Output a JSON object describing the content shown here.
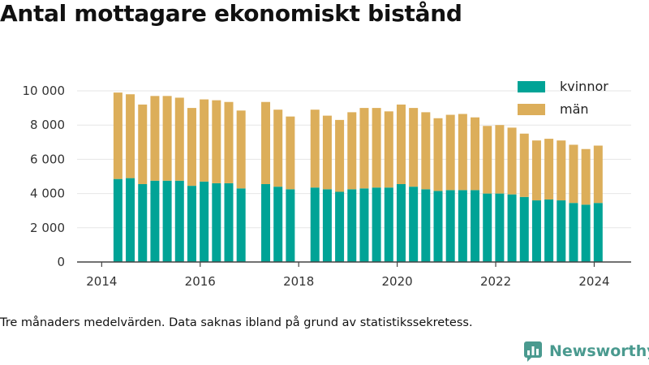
{
  "title": "Antal mottagare ekonomiskt bistånd",
  "footnote": "Tre månaders medelvärden. Data saknas ibland på grund av statistikssekretess.",
  "brand": {
    "name": "Newsworthy",
    "icon": "newsworthy-logo-icon",
    "color": "#4a9a8f"
  },
  "colors": {
    "kvinnor": "#00a396",
    "man": "#dcae5a",
    "grid": "#e6e6e6",
    "axis": "#444444"
  },
  "chart_data": {
    "type": "bar",
    "stacked": true,
    "title": "Antal mottagare ekonomiskt bistånd",
    "xlabel": "",
    "ylabel": "",
    "ylim": [
      0,
      10000
    ],
    "yticks": [
      0,
      2000,
      4000,
      6000,
      8000,
      10000
    ],
    "ytick_labels": [
      "0",
      "2 000",
      "4 000",
      "6 000",
      "8 000",
      "10 000"
    ],
    "xticks": [
      2014,
      2016,
      2018,
      2020,
      2022,
      2024
    ],
    "xtick_labels": [
      "2014",
      "2016",
      "2018",
      "2020",
      "2022",
      "2024"
    ],
    "xlim": [
      2013.5,
      2024.75
    ],
    "grid": "horizontal",
    "legend_position": "top-right",
    "x": [
      2014.33,
      2014.58,
      2014.83,
      2015.08,
      2015.33,
      2015.58,
      2015.83,
      2016.08,
      2016.33,
      2016.58,
      2016.83,
      2017.33,
      2017.58,
      2017.83,
      2018.33,
      2018.58,
      2018.83,
      2019.08,
      2019.33,
      2019.58,
      2019.83,
      2020.08,
      2020.33,
      2020.58,
      2020.83,
      2021.08,
      2021.33,
      2021.58,
      2021.83,
      2022.08,
      2022.33,
      2022.58,
      2022.83,
      2023.08,
      2023.33,
      2023.58,
      2023.83,
      2024.08
    ],
    "series": [
      {
        "name": "kvinnor",
        "color": "#00a396",
        "values": [
          4850,
          4900,
          4550,
          4750,
          4750,
          4750,
          4450,
          4700,
          4600,
          4600,
          4300,
          4550,
          4400,
          4250,
          4350,
          4250,
          4100,
          4250,
          4300,
          4350,
          4350,
          4550,
          4400,
          4250,
          4150,
          4200,
          4200,
          4200,
          4000,
          4000,
          3950,
          3800,
          3600,
          3650,
          3600,
          3450,
          3350,
          3450
        ]
      },
      {
        "name": "män",
        "color": "#dcae5a",
        "values": [
          5050,
          4900,
          4650,
          4950,
          4950,
          4850,
          4550,
          4800,
          4850,
          4750,
          4550,
          4800,
          4500,
          4250,
          4550,
          4300,
          4200,
          4500,
          4700,
          4650,
          4450,
          4650,
          4600,
          4500,
          4250,
          4400,
          4450,
          4250,
          3950,
          4000,
          3900,
          3700,
          3500,
          3550,
          3500,
          3400,
          3250,
          3350
        ]
      }
    ]
  }
}
